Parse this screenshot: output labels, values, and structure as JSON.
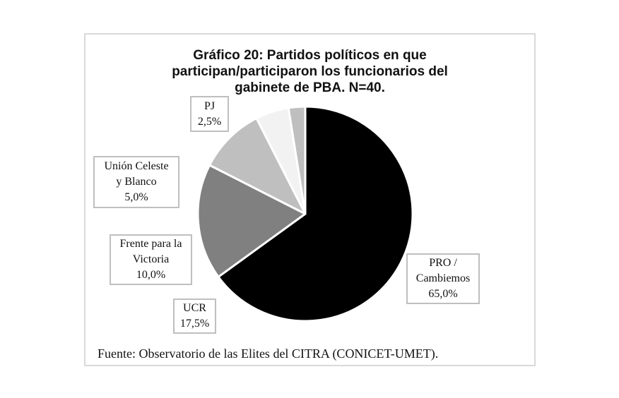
{
  "chart_data": {
    "type": "pie",
    "title": "Gráfico 20: Partidos políticos en que participan/participaron los funcionarios del gabinete de PBA. N=40.",
    "title_lines": [
      "Gráfico 20: Partidos políticos en que",
      "participan/participaron los funcionarios del",
      "gabinete de PBA. N=40."
    ],
    "categories": [
      "PRO / Cambiemos",
      "UCR",
      "Frente para la Victoria",
      "Unión Celeste y Blanco",
      "PJ"
    ],
    "values": [
      65.0,
      17.5,
      10.0,
      5.0,
      2.5
    ],
    "value_labels": [
      "65,0%",
      "17,5%",
      "10,0%",
      "5,0%",
      "2,5%"
    ],
    "slice_colors": [
      "#000000",
      "#808080",
      "#bfbfbf",
      "#f2f2f2",
      "#bfbfbf"
    ],
    "start_angle_deg": 0,
    "direction": "clockwise",
    "legend": "none (data labels in boxes)",
    "source": "Fuente: Observatorio de las Elites del CITRA (CONICET-UMET)."
  },
  "labels": {
    "pro": {
      "line1": "PRO /",
      "line2": "Cambiemos",
      "line3": "65,0%"
    },
    "ucr": {
      "line1": "UCR",
      "line2": "17,5%"
    },
    "fpv": {
      "line1": "Frente para la",
      "line2": "Victoria",
      "line3": "10,0%"
    },
    "ucb": {
      "line1": "Unión  Celeste",
      "line2": "y Blanco",
      "line3": "5,0%"
    },
    "pj": {
      "line1": "PJ",
      "line2": "2,5%"
    }
  },
  "colors": {
    "frame_border": "#d9d9d9",
    "label_border": "#bfbfbf",
    "slice_separator": "#ffffff"
  }
}
